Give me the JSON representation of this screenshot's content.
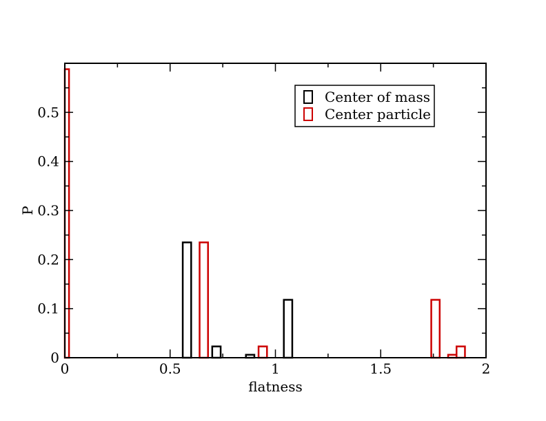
{
  "chart_data": {
    "type": "bar",
    "title": "",
    "xlabel": "flatness",
    "ylabel": "P",
    "xlim": [
      0,
      2
    ],
    "ylim": [
      0,
      0.6
    ],
    "x_ticks": [
      0,
      0.5,
      1,
      1.5,
      2
    ],
    "x_tick_labels": [
      "0",
      "0.5",
      "1",
      "1.5",
      "2"
    ],
    "y_ticks": [
      0,
      0.1,
      0.2,
      0.3,
      0.4,
      0.5
    ],
    "y_tick_labels": [
      "0",
      "0.1",
      "0.2",
      "0.3",
      "0.4",
      "0.5"
    ],
    "grid": false,
    "legend_position": "top-right",
    "bar_width": 0.04,
    "series": [
      {
        "name": "Center of mass",
        "color": "#000000",
        "bars": [
          {
            "x": 0.58,
            "value": 0.235
          },
          {
            "x": 0.72,
            "value": 0.023
          },
          {
            "x": 0.88,
            "value": 0.006
          },
          {
            "x": 1.06,
            "value": 0.118
          }
        ]
      },
      {
        "name": "Center particle",
        "color": "#cc0000",
        "bars": [
          {
            "x": 0.0,
            "value": 0.588
          },
          {
            "x": 0.66,
            "value": 0.235
          },
          {
            "x": 0.94,
            "value": 0.023
          },
          {
            "x": 1.76,
            "value": 0.118
          },
          {
            "x": 1.84,
            "value": 0.006
          },
          {
            "x": 1.88,
            "value": 0.023
          }
        ]
      }
    ]
  }
}
